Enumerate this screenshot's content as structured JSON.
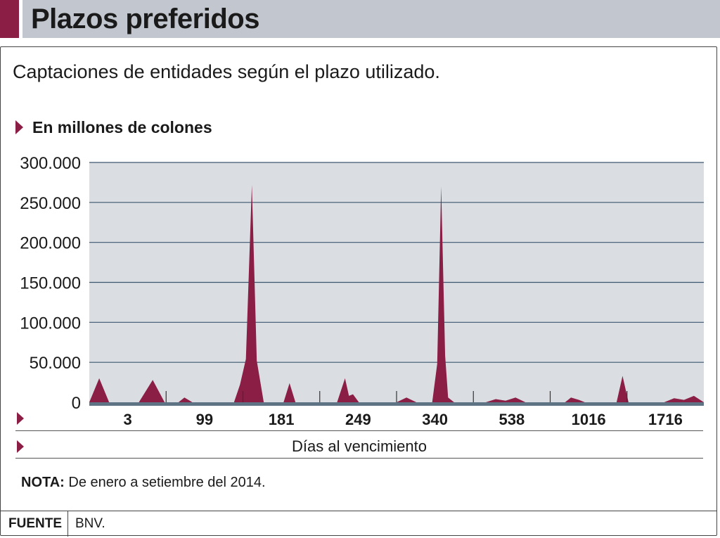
{
  "header": {
    "title": "Plazos preferidos"
  },
  "subtitle": "Captaciones de entidades según el plazo utilizado.",
  "units_label": "En millones de colones",
  "note": {
    "label": "NOTA:",
    "text": "De enero a setiembre del 2014."
  },
  "source": {
    "label": "FUENTE",
    "value": "BNV."
  },
  "colors": {
    "accent": "#8b1e45",
    "plot_bg": "#dadee3",
    "grid": "#3c5670",
    "axis": "#5e7384"
  },
  "chart_data": {
    "type": "area",
    "title": "",
    "xlabel": "Días al vencimiento",
    "ylabel": "En millones de colones",
    "ylim": [
      0,
      300000
    ],
    "yticks": [
      0,
      50000,
      100000,
      150000,
      200000,
      250000,
      300000
    ],
    "ytick_labels": [
      "0",
      "50.000",
      "100.000",
      "150.000",
      "200.000",
      "250.000",
      "300.000"
    ],
    "xtick_labels": [
      "3",
      "99",
      "181",
      "249",
      "340",
      "538",
      "1016",
      "1716"
    ],
    "grid": true,
    "series": [
      {
        "name": "",
        "points": [
          [
            0,
            0
          ],
          [
            0.5,
            30000
          ],
          [
            1,
            0
          ],
          [
            2.5,
            0
          ],
          [
            3.2,
            28000
          ],
          [
            3.8,
            0
          ],
          [
            4.5,
            0
          ],
          [
            4.8,
            6000
          ],
          [
            5.2,
            0
          ],
          [
            6,
            0
          ],
          [
            7.3,
            0
          ],
          [
            7.6,
            22000
          ],
          [
            7.9,
            54000
          ],
          [
            8.2,
            272000
          ],
          [
            8.45,
            52000
          ],
          [
            8.8,
            0
          ],
          [
            9.8,
            0
          ],
          [
            10.1,
            24000
          ],
          [
            10.4,
            0
          ],
          [
            12.5,
            0
          ],
          [
            12.9,
            30000
          ],
          [
            13.1,
            8000
          ],
          [
            13.3,
            10000
          ],
          [
            13.6,
            0
          ],
          [
            15.5,
            0
          ],
          [
            16,
            6000
          ],
          [
            16.5,
            0
          ],
          [
            17.3,
            0
          ],
          [
            17.55,
            48000
          ],
          [
            17.75,
            270000
          ],
          [
            17.95,
            58000
          ],
          [
            18.1,
            6000
          ],
          [
            18.4,
            0
          ],
          [
            20,
            0
          ],
          [
            20.5,
            4000
          ],
          [
            21,
            2000
          ],
          [
            21.5,
            6000
          ],
          [
            22,
            0
          ],
          [
            24,
            0
          ],
          [
            24.3,
            6000
          ],
          [
            24.7,
            3000
          ],
          [
            25,
            0
          ],
          [
            26.6,
            0
          ],
          [
            26.9,
            33000
          ],
          [
            27.2,
            0
          ],
          [
            29,
            0
          ],
          [
            29.5,
            5000
          ],
          [
            30,
            3000
          ],
          [
            30.5,
            8000
          ],
          [
            31,
            0
          ]
        ]
      }
    ]
  }
}
